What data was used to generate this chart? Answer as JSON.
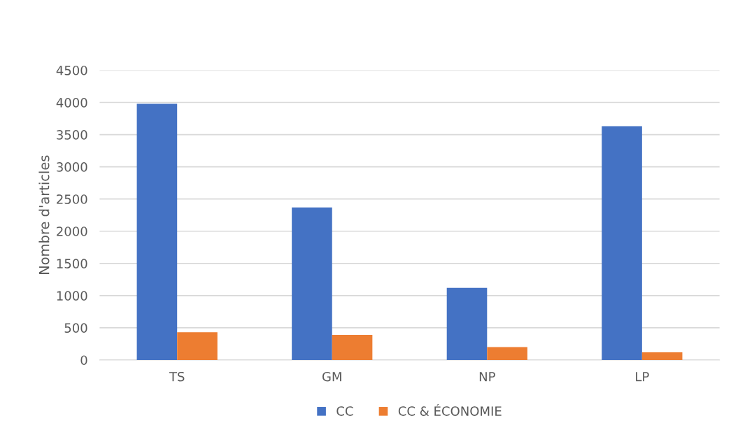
{
  "chart_data": {
    "type": "bar",
    "ylabel": "Nombre d'articles",
    "categories": [
      "TS",
      "GM",
      "NP",
      "LP"
    ],
    "series": [
      {
        "name": "CC",
        "color": "#4472c4",
        "values": [
          3980,
          2370,
          1120,
          3630
        ]
      },
      {
        "name": "CC & ÉCONOMIE",
        "color": "#ed7d31",
        "values": [
          430,
          390,
          200,
          120
        ]
      }
    ],
    "ylim": [
      0,
      4500
    ],
    "yticks": [
      0,
      500,
      1000,
      1500,
      2000,
      2500,
      3000,
      3500,
      4000,
      4500
    ],
    "grid": "y",
    "legend": "bottom"
  }
}
